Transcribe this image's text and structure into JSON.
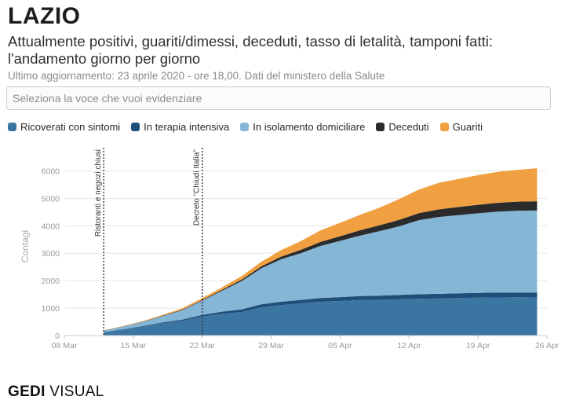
{
  "header": {
    "title": "LAZIO",
    "subtitle": "Attualmente positivi, guariti/dimessi, deceduti, tasso di letalità, tamponi fatti: l'andamento giorno per giorno",
    "update_note": "Ultimo aggiornamento: 23 aprile 2020 - ore 18,00. Dati del ministero della Salute"
  },
  "selector": {
    "placeholder": "Seleziona la voce che vuoi evidenziare"
  },
  "legend": [
    {
      "label": "Ricoverati con sintomi",
      "color": "#3b76a3"
    },
    {
      "label": "In terapia intensiva",
      "color": "#1f4e79"
    },
    {
      "label": "In isolamento domiciliare",
      "color": "#84b6d6"
    },
    {
      "label": "Deceduti",
      "color": "#2b2b2b"
    },
    {
      "label": "Guariti",
      "color": "#f0a040"
    }
  ],
  "footer": {
    "brand_bold": "GEDI",
    "brand_light": "VISUAL"
  },
  "chart_data": {
    "type": "area",
    "stacked": true,
    "title": "",
    "xlabel": "",
    "ylabel": "Contagi",
    "ylim": [
      0,
      6500
    ],
    "xlim": [
      "2020-03-08",
      "2020-04-26"
    ],
    "yticks": [
      0,
      1000,
      2000,
      3000,
      4000,
      5000,
      6000
    ],
    "xtick_labels": [
      "08 Mar",
      "15 Mar",
      "22 Mar",
      "29 Mar",
      "05 Apr",
      "12 Apr",
      "19 Apr",
      "26 Apr"
    ],
    "annotations": [
      {
        "day": 12,
        "label": "Ristoranti e negozi chiusi"
      },
      {
        "day": 22,
        "label": "Decreto \"Chiudi Italia\""
      }
    ],
    "x_days": [
      12,
      14,
      16,
      18,
      20,
      22,
      24,
      26,
      28,
      30,
      32,
      34,
      36,
      38,
      40,
      42,
      44,
      46,
      48,
      50,
      52,
      54,
      56
    ],
    "series": [
      {
        "name": "Ricoverati con sintomi",
        "color": "#3b76a3",
        "values": [
          120,
          220,
          330,
          450,
          540,
          690,
          790,
          860,
          1030,
          1110,
          1170,
          1230,
          1260,
          1290,
          1300,
          1320,
          1340,
          1350,
          1370,
          1380,
          1390,
          1395,
          1390
        ]
      },
      {
        "name": "In terapia intensiva",
        "color": "#1f4e79",
        "values": [
          8,
          12,
          18,
          30,
          45,
          60,
          80,
          95,
          110,
          120,
          130,
          135,
          140,
          150,
          155,
          160,
          165,
          170,
          170,
          175,
          175,
          175,
          175
        ]
      },
      {
        "name": "In isolamento domiciliare",
        "color": "#84b6d6",
        "values": [
          55,
          95,
          150,
          230,
          340,
          520,
          760,
          1030,
          1310,
          1550,
          1700,
          1900,
          2050,
          2200,
          2350,
          2500,
          2700,
          2800,
          2850,
          2900,
          2950,
          2980,
          2990
        ]
      },
      {
        "name": "Deceduti",
        "color": "#2b2b2b",
        "values": [
          3,
          5,
          8,
          12,
          18,
          25,
          35,
          50,
          70,
          95,
          120,
          145,
          170,
          195,
          215,
          235,
          255,
          275,
          295,
          310,
          320,
          330,
          340
        ]
      },
      {
        "name": "Guariti",
        "color": "#f0a040",
        "values": [
          10,
          15,
          20,
          35,
          50,
          70,
          90,
          130,
          170,
          240,
          320,
          420,
          490,
          560,
          640,
          760,
          860,
          970,
          1020,
          1080,
          1130,
          1160,
          1200
        ]
      }
    ]
  }
}
